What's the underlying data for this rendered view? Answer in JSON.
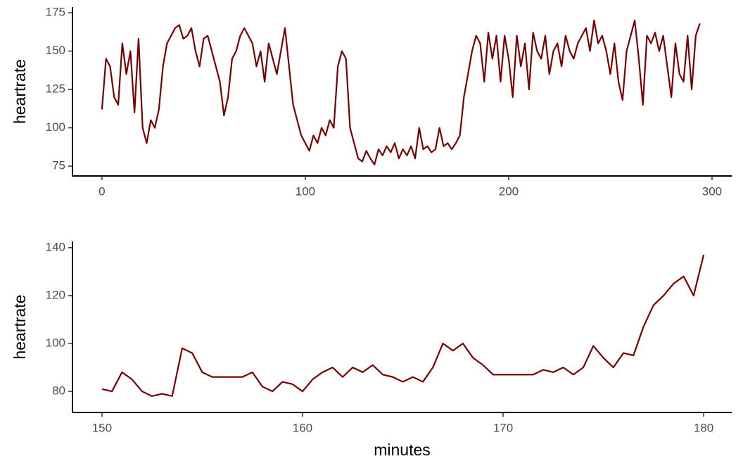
{
  "chart_data": [
    {
      "type": "line",
      "ylabel": "heartrate",
      "color": "#780000",
      "grid": false,
      "xlim": [
        -14.5,
        309.7
      ],
      "ylim": [
        68.6,
        178.7
      ],
      "xticks": [
        0,
        100,
        200,
        300
      ],
      "yticks": [
        75,
        100,
        125,
        150,
        175
      ],
      "x": [
        0,
        2,
        4,
        6,
        8,
        10,
        12,
        14,
        16,
        18,
        20,
        22,
        24,
        26,
        28,
        30,
        32,
        34,
        36,
        38,
        40,
        42,
        44,
        46,
        48,
        50,
        52,
        54,
        56,
        58,
        60,
        62,
        64,
        66,
        68,
        70,
        72,
        74,
        76,
        78,
        80,
        82,
        84,
        86,
        88,
        90,
        92,
        94,
        96,
        98,
        100,
        102,
        104,
        106,
        108,
        110,
        112,
        114,
        116,
        118,
        120,
        122,
        124,
        126,
        128,
        130,
        132,
        134,
        136,
        138,
        140,
        142,
        144,
        146,
        148,
        150,
        152,
        154,
        156,
        158,
        160,
        162,
        164,
        166,
        168,
        170,
        172,
        174,
        176,
        178,
        180,
        182,
        184,
        186,
        188,
        190,
        192,
        194,
        196,
        198,
        200,
        202,
        204,
        206,
        208,
        210,
        212,
        214,
        216,
        218,
        220,
        222,
        224,
        226,
        228,
        230,
        232,
        234,
        236,
        238,
        240,
        242,
        244,
        246,
        248,
        250,
        252,
        254,
        256,
        258,
        260,
        262,
        264,
        266,
        268,
        270,
        272,
        274,
        276,
        278,
        280,
        282,
        284,
        286,
        288,
        290,
        292,
        294
      ],
      "values": [
        112,
        145,
        140,
        120,
        115,
        155,
        135,
        150,
        110,
        158,
        100,
        90,
        105,
        100,
        112,
        140,
        155,
        160,
        165,
        167,
        158,
        160,
        165,
        150,
        140,
        158,
        160,
        150,
        140,
        130,
        108,
        120,
        145,
        150,
        160,
        165,
        160,
        155,
        140,
        150,
        130,
        155,
        145,
        135,
        150,
        165,
        140,
        115,
        105,
        95,
        90,
        85,
        95,
        90,
        100,
        95,
        105,
        100,
        140,
        150,
        145,
        100,
        90,
        80,
        78,
        85,
        80,
        76,
        86,
        82,
        88,
        84,
        90,
        80,
        86,
        82,
        88,
        80,
        100,
        86,
        88,
        84,
        86,
        100,
        88,
        90,
        86,
        90,
        95,
        120,
        135,
        150,
        160,
        155,
        130,
        162,
        145,
        160,
        130,
        160,
        145,
        120,
        160,
        140,
        155,
        125,
        162,
        150,
        145,
        160,
        135,
        150,
        155,
        140,
        160,
        150,
        145,
        155,
        160,
        165,
        150,
        170,
        155,
        160,
        150,
        135,
        155,
        130,
        118,
        150,
        160,
        170,
        145,
        115,
        160,
        155,
        162,
        150,
        160,
        140,
        120,
        155,
        135,
        130,
        160,
        125,
        160,
        168
      ]
    },
    {
      "type": "line",
      "ylabel": "heartrate",
      "xlabel": "minutes",
      "color": "#780000",
      "grid": false,
      "xlim": [
        148.53,
        181.4
      ],
      "ylim": [
        71.2,
        142.6
      ],
      "xticks": [
        150,
        160,
        170,
        180
      ],
      "yticks": [
        80,
        100,
        120,
        140
      ],
      "x": [
        150,
        150.5,
        151,
        151.5,
        152,
        152.5,
        153,
        153.5,
        154,
        154.5,
        155,
        155.5,
        156,
        156.5,
        157,
        157.5,
        158,
        158.5,
        159,
        159.5,
        160,
        160.5,
        161,
        161.5,
        162,
        162.5,
        163,
        163.5,
        164,
        164.5,
        165,
        165.5,
        166,
        166.5,
        167,
        167.5,
        168,
        168.5,
        169,
        169.5,
        170,
        170.5,
        171,
        171.5,
        172,
        172.5,
        173,
        173.5,
        174,
        174.5,
        175,
        175.5,
        176,
        176.5,
        177,
        177.5,
        178,
        178.5,
        179,
        179.5,
        180
      ],
      "values": [
        81,
        80,
        88,
        85,
        80,
        78,
        79,
        78,
        98,
        96,
        88,
        86,
        86,
        86,
        86,
        88,
        82,
        80,
        84,
        83,
        80,
        85,
        88,
        90,
        86,
        90,
        88,
        91,
        87,
        86,
        84,
        86,
        84,
        90,
        100,
        97,
        100,
        94,
        91,
        87,
        87,
        87,
        87,
        87,
        89,
        88,
        90,
        87,
        90,
        99,
        94,
        90,
        96,
        95,
        107,
        116,
        120,
        125,
        128,
        120,
        137
      ]
    }
  ]
}
